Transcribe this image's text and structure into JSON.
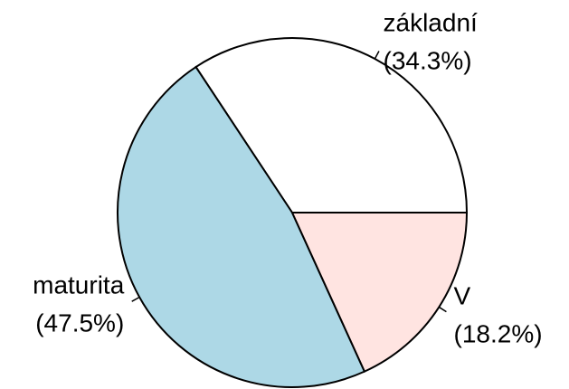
{
  "chart_data": {
    "type": "pie",
    "categories": [
      "základní",
      "maturita",
      "V"
    ],
    "values": [
      34.3,
      47.5,
      18.2
    ],
    "value_labels": [
      "(34.3%)",
      "(47.5%)",
      "(18.2%)"
    ],
    "colors": [
      "#ffffff",
      "#add8e6",
      "#ffe4e1"
    ]
  }
}
